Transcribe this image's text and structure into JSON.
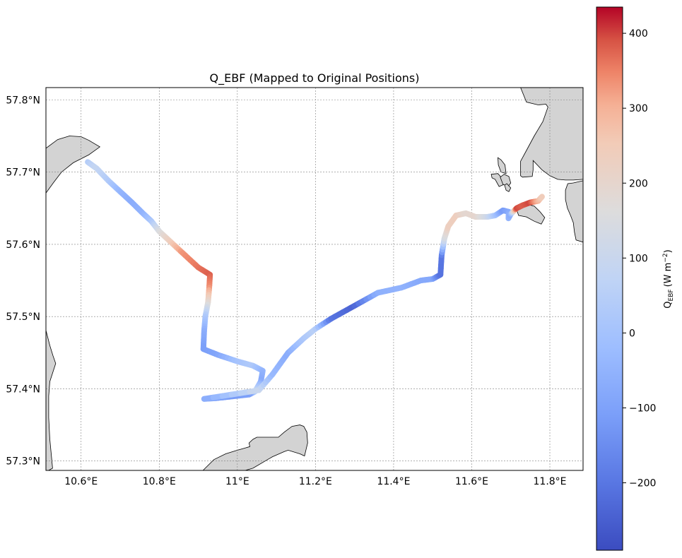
{
  "title": "Q_EBF (Mapped to Original Positions)",
  "map": {
    "lon_range": [
      10.51,
      11.885
    ],
    "lat_range": [
      57.287,
      57.817
    ],
    "lon_ticks": [
      10.6,
      10.8,
      11.0,
      11.2,
      11.4,
      11.6,
      11.8
    ],
    "lon_tick_labels": [
      "10.6°E",
      "10.8°E",
      "11°E",
      "11.2°E",
      "11.4°E",
      "11.6°E",
      "11.8°E"
    ],
    "lat_ticks": [
      57.3,
      57.4,
      57.5,
      57.6,
      57.7,
      57.8
    ],
    "lat_tick_labels": [
      "57.3°N",
      "57.4°N",
      "57.5°N",
      "57.6°N",
      "57.7°N",
      "57.8°N"
    ],
    "gridlines": true,
    "land_color": "#d3d3d3",
    "coastline_color": "#000000",
    "land_polygons": [
      {
        "name": "west-coast-north",
        "coords": [
          [
            10.51,
            57.733
          ],
          [
            10.54,
            57.745
          ],
          [
            10.57,
            57.75
          ],
          [
            10.6,
            57.749
          ],
          [
            10.62,
            57.744
          ],
          [
            10.648,
            57.735
          ],
          [
            10.62,
            57.724
          ],
          [
            10.58,
            57.713
          ],
          [
            10.55,
            57.7
          ],
          [
            10.53,
            57.686
          ],
          [
            10.51,
            57.671
          ]
        ]
      },
      {
        "name": "west-coast-south",
        "coords": [
          [
            10.51,
            57.481
          ],
          [
            10.52,
            57.46
          ],
          [
            10.528,
            57.446
          ],
          [
            10.535,
            57.435
          ],
          [
            10.52,
            57.41
          ],
          [
            10.517,
            57.39
          ],
          [
            10.517,
            57.36
          ],
          [
            10.52,
            57.33
          ],
          [
            10.527,
            57.29
          ],
          [
            10.51,
            57.285
          ]
        ]
      },
      {
        "name": "south-island",
        "coords": [
          [
            10.912,
            57.287
          ],
          [
            10.94,
            57.302
          ],
          [
            10.97,
            57.31
          ],
          [
            11.0,
            57.315
          ],
          [
            11.02,
            57.318
          ],
          [
            11.032,
            57.32
          ],
          [
            11.03,
            57.325
          ],
          [
            11.04,
            57.33
          ],
          [
            11.05,
            57.333
          ],
          [
            11.09,
            57.333
          ],
          [
            11.105,
            57.333
          ],
          [
            11.12,
            57.34
          ],
          [
            11.14,
            57.348
          ],
          [
            11.16,
            57.35
          ],
          [
            11.17,
            57.348
          ],
          [
            11.178,
            57.34
          ],
          [
            11.18,
            57.325
          ],
          [
            11.172,
            57.307
          ],
          [
            11.16,
            57.31
          ],
          [
            11.13,
            57.315
          ],
          [
            11.12,
            57.313
          ],
          [
            11.09,
            57.306
          ],
          [
            11.04,
            57.29
          ],
          [
            11.02,
            57.287
          ]
        ]
      },
      {
        "name": "east-mainland",
        "coords": [
          [
            11.725,
            57.817
          ],
          [
            11.74,
            57.797
          ],
          [
            11.77,
            57.793
          ],
          [
            11.79,
            57.794
          ],
          [
            11.795,
            57.79
          ],
          [
            11.782,
            57.77
          ],
          [
            11.76,
            57.75
          ],
          [
            11.74,
            57.73
          ],
          [
            11.725,
            57.715
          ],
          [
            11.725,
            57.695
          ],
          [
            11.73,
            57.693
          ],
          [
            11.755,
            57.694
          ],
          [
            11.757,
            57.703
          ],
          [
            11.757,
            57.716
          ],
          [
            11.78,
            57.703
          ],
          [
            11.8,
            57.695
          ],
          [
            11.82,
            57.69
          ],
          [
            11.84,
            57.689
          ],
          [
            11.86,
            57.689
          ],
          [
            11.885,
            57.69
          ],
          [
            11.885,
            57.817
          ]
        ]
      },
      {
        "name": "east-peninsula",
        "coords": [
          [
            11.885,
            57.688
          ],
          [
            11.86,
            57.685
          ],
          [
            11.846,
            57.684
          ],
          [
            11.84,
            57.675
          ],
          [
            11.84,
            57.662
          ],
          [
            11.845,
            57.65
          ],
          [
            11.853,
            57.64
          ],
          [
            11.86,
            57.63
          ],
          [
            11.863,
            57.617
          ],
          [
            11.867,
            57.606
          ],
          [
            11.885,
            57.603
          ]
        ]
      },
      {
        "name": "islet-hisingen",
        "coords": [
          [
            11.65,
            57.697
          ],
          [
            11.667,
            57.698
          ],
          [
            11.68,
            57.69
          ],
          [
            11.683,
            57.683
          ],
          [
            11.67,
            57.68
          ],
          [
            11.66,
            57.69
          ],
          [
            11.652,
            57.692
          ]
        ]
      },
      {
        "name": "islet-north",
        "coords": [
          [
            11.667,
            57.72
          ],
          [
            11.675,
            57.717
          ],
          [
            11.685,
            57.71
          ],
          [
            11.688,
            57.698
          ],
          [
            11.675,
            57.7
          ],
          [
            11.668,
            57.71
          ]
        ]
      },
      {
        "name": "islet-east",
        "coords": [
          [
            11.715,
            57.648
          ],
          [
            11.728,
            57.655
          ],
          [
            11.745,
            57.655
          ],
          [
            11.76,
            57.653
          ],
          [
            11.775,
            57.645
          ],
          [
            11.787,
            57.637
          ],
          [
            11.778,
            57.628
          ],
          [
            11.76,
            57.632
          ],
          [
            11.74,
            57.638
          ],
          [
            11.72,
            57.64
          ]
        ]
      },
      {
        "name": "islet-small-1",
        "coords": [
          [
            11.673,
            57.693
          ],
          [
            11.683,
            57.697
          ],
          [
            11.695,
            57.694
          ],
          [
            11.7,
            57.685
          ],
          [
            11.693,
            57.68
          ],
          [
            11.68,
            57.683
          ]
        ]
      },
      {
        "name": "islet-small-2",
        "coords": [
          [
            11.684,
            57.682
          ],
          [
            11.69,
            57.684
          ],
          [
            11.7,
            57.678
          ],
          [
            11.695,
            57.673
          ],
          [
            11.688,
            57.675
          ]
        ]
      }
    ]
  },
  "chart_data": {
    "type": "track",
    "title": "Q_EBF (Mapped to Original Positions)",
    "colormap": "coolwarm",
    "color_range": [
      -290,
      435
    ],
    "colorbar_label": "Q_EBF (W m^-2)",
    "colorbar_label_main": "Q",
    "colorbar_label_sub": "EBF",
    "colorbar_label_unit": "(W m",
    "colorbar_label_sup": "−2",
    "colorbar_label_close": ")",
    "colorbar_ticks": [
      -200,
      -100,
      0,
      100,
      200,
      300,
      400
    ],
    "colorbar_tick_labels": [
      "−200",
      "−100",
      "0",
      "100",
      "200",
      "300",
      "400"
    ],
    "track": [
      {
        "lon": 10.617,
        "lat": 57.714,
        "value": 40
      },
      {
        "lon": 10.64,
        "lat": 57.705,
        "value": 90
      },
      {
        "lon": 10.67,
        "lat": 57.688,
        "value": 40
      },
      {
        "lon": 10.7,
        "lat": 57.673,
        "value": -40
      },
      {
        "lon": 10.73,
        "lat": 57.658,
        "value": -70
      },
      {
        "lon": 10.76,
        "lat": 57.642,
        "value": -50
      },
      {
        "lon": 10.78,
        "lat": 57.632,
        "value": 10
      },
      {
        "lon": 10.8,
        "lat": 57.618,
        "value": 150
      },
      {
        "lon": 10.83,
        "lat": 57.603,
        "value": 240
      },
      {
        "lon": 10.86,
        "lat": 57.588,
        "value": 330
      },
      {
        "lon": 10.9,
        "lat": 57.568,
        "value": 360
      },
      {
        "lon": 10.93,
        "lat": 57.558,
        "value": 380
      },
      {
        "lon": 10.928,
        "lat": 57.54,
        "value": 340
      },
      {
        "lon": 10.925,
        "lat": 57.52,
        "value": 200
      },
      {
        "lon": 10.918,
        "lat": 57.5,
        "value": 30
      },
      {
        "lon": 10.915,
        "lat": 57.48,
        "value": -60
      },
      {
        "lon": 10.913,
        "lat": 57.455,
        "value": -110
      },
      {
        "lon": 10.95,
        "lat": 57.447,
        "value": -90
      },
      {
        "lon": 11.0,
        "lat": 57.438,
        "value": 0
      },
      {
        "lon": 11.04,
        "lat": 57.432,
        "value": 30
      },
      {
        "lon": 11.065,
        "lat": 57.425,
        "value": -40
      },
      {
        "lon": 11.06,
        "lat": 57.41,
        "value": -80
      },
      {
        "lon": 11.045,
        "lat": 57.396,
        "value": 80
      },
      {
        "lon": 11.03,
        "lat": 57.392,
        "value": -100
      },
      {
        "lon": 10.98,
        "lat": 57.389,
        "value": -120
      },
      {
        "lon": 10.945,
        "lat": 57.387,
        "value": -100
      },
      {
        "lon": 10.915,
        "lat": 57.386,
        "value": -80
      },
      {
        "lon": 11.055,
        "lat": 57.398,
        "value": 110
      },
      {
        "lon": 11.09,
        "lat": 57.42,
        "value": -30
      },
      {
        "lon": 11.13,
        "lat": 57.45,
        "value": -70
      },
      {
        "lon": 11.17,
        "lat": 57.47,
        "value": 20
      },
      {
        "lon": 11.2,
        "lat": 57.483,
        "value": 60
      },
      {
        "lon": 11.24,
        "lat": 57.497,
        "value": -200
      },
      {
        "lon": 11.3,
        "lat": 57.515,
        "value": -240
      },
      {
        "lon": 11.36,
        "lat": 57.533,
        "value": -60
      },
      {
        "lon": 11.42,
        "lat": 57.54,
        "value": -50
      },
      {
        "lon": 11.47,
        "lat": 57.55,
        "value": -80
      },
      {
        "lon": 11.5,
        "lat": 57.552,
        "value": -80
      },
      {
        "lon": 11.52,
        "lat": 57.558,
        "value": -210
      },
      {
        "lon": 11.523,
        "lat": 57.585,
        "value": -200
      },
      {
        "lon": 11.53,
        "lat": 57.608,
        "value": 130
      },
      {
        "lon": 11.54,
        "lat": 57.625,
        "value": 230
      },
      {
        "lon": 11.56,
        "lat": 57.64,
        "value": 240
      },
      {
        "lon": 11.585,
        "lat": 57.643,
        "value": 190
      },
      {
        "lon": 11.61,
        "lat": 57.638,
        "value": 200
      },
      {
        "lon": 11.64,
        "lat": 57.638,
        "value": 120
      },
      {
        "lon": 11.66,
        "lat": 57.64,
        "value": 20
      },
      {
        "lon": 11.68,
        "lat": 57.647,
        "value": -120
      },
      {
        "lon": 11.695,
        "lat": 57.645,
        "value": -80
      },
      {
        "lon": 11.694,
        "lat": 57.636,
        "value": -40
      },
      {
        "lon": 11.7,
        "lat": 57.642,
        "value": -70
      },
      {
        "lon": 11.715,
        "lat": 57.65,
        "value": 400
      },
      {
        "lon": 11.73,
        "lat": 57.654,
        "value": 380
      },
      {
        "lon": 11.75,
        "lat": 57.658,
        "value": 400
      },
      {
        "lon": 11.77,
        "lat": 57.66,
        "value": 300
      },
      {
        "lon": 11.78,
        "lat": 57.666,
        "value": 240
      }
    ]
  }
}
